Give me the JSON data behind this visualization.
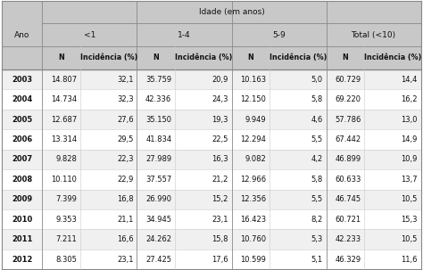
{
  "title_row": "Idade (em anos)",
  "col_groups": [
    "<1",
    "1-4",
    "5-9",
    "Total (<10)"
  ],
  "sub_cols": [
    "N",
    "Incidência (%)"
  ],
  "ano_col": "Ano",
  "years": [
    "2003",
    "2004",
    "2005",
    "2006",
    "2007",
    "2008",
    "2009",
    "2010",
    "2011",
    "2012"
  ],
  "data": [
    [
      "14.807",
      "32,1",
      "35.759",
      "20,9",
      "10.163",
      "5,0",
      "60.729",
      "14,4"
    ],
    [
      "14.734",
      "32,3",
      "42.336",
      "24,3",
      "12.150",
      "5,8",
      "69.220",
      "16,2"
    ],
    [
      "12.687",
      "27,6",
      "35.150",
      "19,3",
      "9.949",
      "4,6",
      "57.786",
      "13,0"
    ],
    [
      "13.314",
      "29,5",
      "41.834",
      "22,5",
      "12.294",
      "5,5",
      "67.442",
      "14,9"
    ],
    [
      "9.828",
      "22,3",
      "27.989",
      "16,3",
      "9.082",
      "4,2",
      "46.899",
      "10,9"
    ],
    [
      "10.110",
      "22,9",
      "37.557",
      "21,2",
      "12.966",
      "5,8",
      "60.633",
      "13,7"
    ],
    [
      "7.399",
      "16,8",
      "26.990",
      "15,2",
      "12.356",
      "5,5",
      "46.745",
      "10,5"
    ],
    [
      "9.353",
      "21,1",
      "34.945",
      "23,1",
      "16.423",
      "8,2",
      "60.721",
      "15,3"
    ],
    [
      "7.211",
      "16,6",
      "24.262",
      "15,8",
      "10.760",
      "5,3",
      "42.233",
      "10,5"
    ],
    [
      "8.305",
      "23,1",
      "27.425",
      "17,6",
      "10.599",
      "5,1",
      "46.329",
      "11,6"
    ]
  ],
  "header_bg": "#c8c8c8",
  "row_bg_alt": "#f0f0f0",
  "row_bg_white": "#ffffff",
  "border_color": "#888888",
  "light_line": "#cccccc",
  "figw": 4.74,
  "figh": 3.03,
  "dpi": 100
}
